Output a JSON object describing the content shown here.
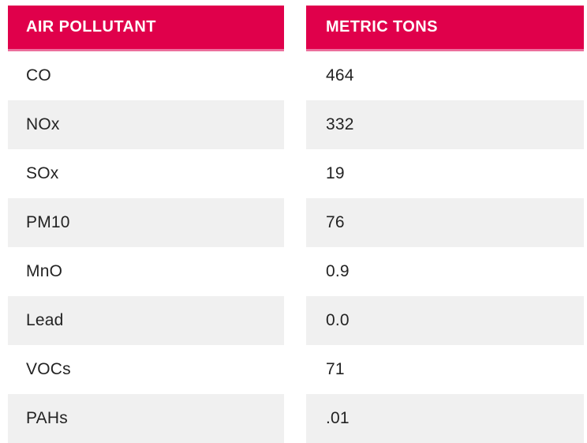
{
  "chart_data": {
    "type": "table",
    "columns": [
      "AIR POLLUTANT",
      "METRIC TONS"
    ],
    "rows": [
      [
        "CO",
        "464"
      ],
      [
        "NOx",
        "332"
      ],
      [
        "SOx",
        "19"
      ],
      [
        "PM10",
        "76"
      ],
      [
        "MnO",
        "0.9"
      ],
      [
        "Lead",
        "0.0"
      ],
      [
        "VOCs",
        "71"
      ],
      [
        "PAHs",
        ".01"
      ]
    ]
  },
  "table": {
    "header": {
      "pollutant_label": "AIR POLLUTANT",
      "metric_tons_label": "METRIC TONS"
    },
    "rows": [
      {
        "pollutant": "CO",
        "metric_tons": "464"
      },
      {
        "pollutant": "NOx",
        "metric_tons": "332"
      },
      {
        "pollutant": "SOx",
        "metric_tons": "19"
      },
      {
        "pollutant": "PM10",
        "metric_tons": "76"
      },
      {
        "pollutant": "MnO",
        "metric_tons": "0.9"
      },
      {
        "pollutant": "Lead",
        "metric_tons": "0.0"
      },
      {
        "pollutant": "VOCs",
        "metric_tons": "71"
      },
      {
        "pollutant": "PAHs",
        "metric_tons": ".01"
      }
    ],
    "colors": {
      "header_bg": "#E0004B",
      "header_underline": "#EC6F9D",
      "header_text": "#FFFFFF",
      "row_bg": "#FFFFFF",
      "row_alt_bg": "#F0F0F0",
      "cell_text": "#232323",
      "page_bg": "#FFFFFF"
    }
  }
}
